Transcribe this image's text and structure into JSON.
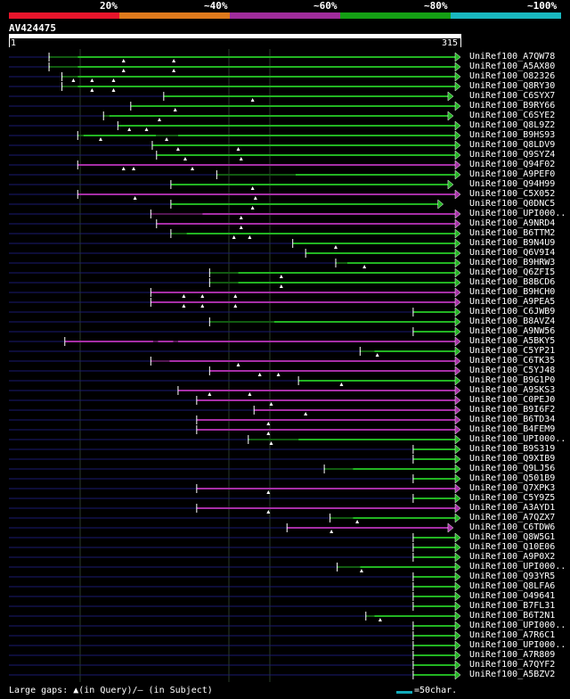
{
  "legend": {
    "labels": [
      "20%",
      "~40%",
      "~60%",
      "~80%",
      "~100%"
    ],
    "colors": [
      "#e8152b",
      "#e07a1c",
      "#a02c9c",
      "#14a014",
      "#19b8c0"
    ]
  },
  "query": {
    "id": "AV424475",
    "start_label": "1",
    "end_label": "315",
    "length": 315
  },
  "hits": [
    {
      "label": "UniRef100_A7QW78",
      "color": "green",
      "q_start": 28,
      "q_end": 315,
      "gaps": [
        [
          28,
          48
        ]
      ],
      "tri": [
        80,
        115
      ],
      "arrow": true
    },
    {
      "label": "UniRef100_A5AX80",
      "color": "green",
      "q_start": 28,
      "q_end": 315,
      "gaps": [
        [
          28,
          48
        ]
      ],
      "tri": [
        80,
        115
      ],
      "arrow": true
    },
    {
      "label": "UniRef100_O82326",
      "color": "green",
      "q_start": 37,
      "q_end": 315,
      "gaps": [
        [
          37,
          48
        ]
      ],
      "tri": [
        45,
        58,
        73
      ],
      "arrow": true
    },
    {
      "label": "UniRef100_Q8RY30",
      "color": "green",
      "q_start": 37,
      "q_end": 315,
      "gaps": [
        [
          37,
          48
        ]
      ],
      "tri": [
        58,
        73
      ],
      "arrow": true
    },
    {
      "label": "UniRef100_C6SYX7",
      "color": "green",
      "q_start": 108,
      "q_end": 310,
      "gaps": [],
      "tri": [
        170
      ],
      "arrow": true
    },
    {
      "label": "UniRef100_B9RY66",
      "color": "green",
      "q_start": 85,
      "q_end": 315,
      "gaps": [],
      "tri": [
        116
      ],
      "arrow": true
    },
    {
      "label": "UniRef100_C6SYE2",
      "color": "green",
      "q_start": 66,
      "q_end": 310,
      "gaps": [
        [
          66,
          70
        ]
      ],
      "tri": [
        105
      ],
      "arrow": true
    },
    {
      "label": "UniRef100_Q8L9Z2",
      "color": "green",
      "q_start": 76,
      "q_end": 315,
      "gaps": [],
      "tri": [
        84,
        96
      ],
      "arrow": true
    },
    {
      "label": "UniRef100_B9HS93",
      "color": "green",
      "q_start": 48,
      "q_end": 315,
      "gaps": [
        [
          48,
          52
        ],
        [
          102,
          118
        ]
      ],
      "tri": [
        64,
        110
      ],
      "arrow": true
    },
    {
      "label": "UniRef100_Q8LDV9",
      "color": "green",
      "q_start": 100,
      "q_end": 315,
      "gaps": [],
      "tri": [
        118,
        160
      ],
      "arrow": true
    },
    {
      "label": "UniRef100_Q9SYZ4",
      "color": "green",
      "q_start": 103,
      "q_end": 315,
      "gaps": [],
      "tri": [
        123,
        162
      ],
      "arrow": true
    },
    {
      "label": "UniRef100_Q94F02",
      "color": "purple",
      "q_start": 48,
      "q_end": 315,
      "gaps": [],
      "tri": [
        80,
        87,
        128
      ],
      "arrow": true
    },
    {
      "label": "UniRef100_A9PEF0",
      "color": "green",
      "q_start": 145,
      "q_end": 315,
      "gaps": [
        [
          145,
          200
        ]
      ],
      "tri": [],
      "arrow": true
    },
    {
      "label": "UniRef100_Q94H99",
      "color": "green",
      "q_start": 113,
      "q_end": 310,
      "gaps": [],
      "tri": [
        170
      ],
      "arrow": true
    },
    {
      "label": "UniRef100_C5X052",
      "color": "purple",
      "q_start": 48,
      "q_end": 315,
      "gaps": [],
      "tri": [
        88,
        172
      ],
      "arrow": true
    },
    {
      "label": "UniRef100_Q0DNC5",
      "color": "green",
      "q_start": 113,
      "q_end": 303,
      "gaps": [],
      "tri": [
        170
      ],
      "arrow": true
    },
    {
      "label": "UniRef100_UPI000..",
      "color": "purple",
      "q_start": 99,
      "q_end": 315,
      "gaps": [
        [
          99,
          135
        ]
      ],
      "tri": [
        162
      ],
      "arrow": true
    },
    {
      "label": "UniRef100_A9NRD4",
      "color": "purple",
      "q_start": 103,
      "q_end": 315,
      "gaps": [],
      "tri": [
        162
      ],
      "arrow": true
    },
    {
      "label": "UniRef100_B6TTM2",
      "color": "green",
      "q_start": 113,
      "q_end": 315,
      "gaps": [
        [
          113,
          124
        ]
      ],
      "tri": [
        157,
        168
      ],
      "arrow": true
    },
    {
      "label": "UniRef100_B9N4U9",
      "color": "green",
      "q_start": 198,
      "q_end": 315,
      "gaps": [],
      "tri": [
        228
      ],
      "arrow": true
    },
    {
      "label": "UniRef100_Q6V9I4",
      "color": "green",
      "q_start": 207,
      "q_end": 315,
      "gaps": [],
      "tri": [],
      "arrow": true
    },
    {
      "label": "UniRef100_B9HRW3",
      "color": "green",
      "q_start": 228,
      "q_end": 315,
      "gaps": [
        [
          228,
          236
        ]
      ],
      "tri": [
        248
      ],
      "arrow": true
    },
    {
      "label": "UniRef100_Q6ZFI5",
      "color": "green",
      "q_start": 140,
      "q_end": 315,
      "gaps": [
        [
          140,
          160
        ]
      ],
      "tri": [
        190
      ],
      "arrow": true
    },
    {
      "label": "UniRef100_B8BCD6",
      "color": "green",
      "q_start": 140,
      "q_end": 315,
      "gaps": [
        [
          140,
          160
        ]
      ],
      "tri": [
        190
      ],
      "arrow": true
    },
    {
      "label": "UniRef100_B9HCH0",
      "color": "purple",
      "q_start": 99,
      "q_end": 315,
      "gaps": [],
      "tri": [
        122,
        135,
        158
      ],
      "arrow": true
    },
    {
      "label": "UniRef100_A9PEA5",
      "color": "purple",
      "q_start": 99,
      "q_end": 315,
      "gaps": [],
      "tri": [
        122,
        135,
        158
      ],
      "arrow": true
    },
    {
      "label": "UniRef100_C6JWB9",
      "color": "green",
      "q_start": 282,
      "q_end": 315,
      "gaps": [],
      "tri": [],
      "arrow": true
    },
    {
      "label": "UniRef100_B8AVZ4",
      "color": "green",
      "q_start": 140,
      "q_end": 315,
      "gaps": [
        [
          140,
          185
        ]
      ],
      "tri": [],
      "arrow": true
    },
    {
      "label": "UniRef100_A9NW56",
      "color": "green",
      "q_start": 282,
      "q_end": 315,
      "gaps": [],
      "tri": [],
      "arrow": true
    },
    {
      "label": "UniRef100_A5BKY5",
      "color": "purple",
      "q_start": 39,
      "q_end": 315,
      "gaps": [
        [
          100,
          104
        ],
        [
          114,
          118
        ]
      ],
      "tri": [],
      "arrow": true
    },
    {
      "label": "UniRef100_C5YP21",
      "color": "green",
      "q_start": 245,
      "q_end": 315,
      "gaps": [
        [
          245,
          255
        ]
      ],
      "tri": [
        257
      ],
      "arrow": true
    },
    {
      "label": "UniRef100_C6TK35",
      "color": "purple",
      "q_start": 99,
      "q_end": 315,
      "gaps": [
        [
          99,
          112
        ]
      ],
      "tri": [
        160
      ],
      "arrow": true
    },
    {
      "label": "UniRef100_C5YJ48",
      "color": "purple",
      "q_start": 140,
      "q_end": 315,
      "gaps": [],
      "tri": [
        175,
        188
      ],
      "arrow": true
    },
    {
      "label": "UniRef100_B9G1P0",
      "color": "green",
      "q_start": 202,
      "q_end": 315,
      "gaps": [],
      "tri": [
        232
      ],
      "arrow": true
    },
    {
      "label": "UniRef100_A9SKS3",
      "color": "purple",
      "q_start": 118,
      "q_end": 315,
      "gaps": [],
      "tri": [
        140,
        168
      ],
      "arrow": true
    },
    {
      "label": "UniRef100_C0PEJ0",
      "color": "purple",
      "q_start": 131,
      "q_end": 315,
      "gaps": [],
      "tri": [
        183
      ],
      "arrow": true
    },
    {
      "label": "UniRef100_B9I6F2",
      "color": "purple",
      "q_start": 171,
      "q_end": 315,
      "gaps": [],
      "tri": [
        207
      ],
      "arrow": true
    },
    {
      "label": "UniRef100_B6TD34",
      "color": "purple",
      "q_start": 131,
      "q_end": 315,
      "gaps": [],
      "tri": [
        181
      ],
      "arrow": true
    },
    {
      "label": "UniRef100_B4FEM9",
      "color": "purple",
      "q_start": 131,
      "q_end": 315,
      "gaps": [],
      "tri": [
        181
      ],
      "arrow": true
    },
    {
      "label": "UniRef100_UPI000..",
      "color": "green",
      "q_start": 167,
      "q_end": 315,
      "gaps": [
        [
          167,
          202
        ]
      ],
      "tri": [
        183
      ],
      "arrow": true
    },
    {
      "label": "UniRef100_B9S319",
      "color": "green",
      "q_start": 282,
      "q_end": 315,
      "gaps": [],
      "tri": [],
      "arrow": true
    },
    {
      "label": "UniRef100_Q9XIB9",
      "color": "green",
      "q_start": 282,
      "q_end": 315,
      "gaps": [],
      "tri": [],
      "arrow": true
    },
    {
      "label": "UniRef100_Q9LJ56",
      "color": "green",
      "q_start": 220,
      "q_end": 315,
      "gaps": [
        [
          220,
          240
        ]
      ],
      "tri": [],
      "arrow": true
    },
    {
      "label": "UniRef100_Q501B9",
      "color": "green",
      "q_start": 282,
      "q_end": 315,
      "gaps": [],
      "tri": [],
      "arrow": true
    },
    {
      "label": "UniRef100_Q7XPK3",
      "color": "purple",
      "q_start": 131,
      "q_end": 315,
      "gaps": [],
      "tri": [
        181
      ],
      "arrow": true
    },
    {
      "label": "UniRef100_C5Y9Z5",
      "color": "green",
      "q_start": 282,
      "q_end": 315,
      "gaps": [],
      "tri": [],
      "arrow": true
    },
    {
      "label": "UniRef100_A3AYD1",
      "color": "purple",
      "q_start": 131,
      "q_end": 315,
      "gaps": [],
      "tri": [
        181
      ],
      "arrow": true
    },
    {
      "label": "UniRef100_A7QZX7",
      "color": "green",
      "q_start": 224,
      "q_end": 315,
      "gaps": [
        [
          224,
          240
        ]
      ],
      "tri": [
        243
      ],
      "arrow": true
    },
    {
      "label": "UniRef100_C6TDW6",
      "color": "purple",
      "q_start": 194,
      "q_end": 310,
      "gaps": [],
      "tri": [
        225
      ],
      "arrow": true
    },
    {
      "label": "UniRef100_Q8W5G1",
      "color": "green",
      "q_start": 282,
      "q_end": 315,
      "gaps": [],
      "tri": [],
      "arrow": true
    },
    {
      "label": "UniRef100_Q10E06",
      "color": "green",
      "q_start": 282,
      "q_end": 315,
      "gaps": [],
      "tri": [],
      "arrow": true
    },
    {
      "label": "UniRef100_A9P0X2",
      "color": "green",
      "q_start": 282,
      "q_end": 315,
      "gaps": [],
      "tri": [],
      "arrow": true
    },
    {
      "label": "UniRef100_UPI000..",
      "color": "green",
      "q_start": 229,
      "q_end": 315,
      "gaps": [
        [
          229,
          245
        ]
      ],
      "tri": [
        246
      ],
      "arrow": true
    },
    {
      "label": "UniRef100_Q93YR5",
      "color": "green",
      "q_start": 282,
      "q_end": 315,
      "gaps": [],
      "tri": [],
      "arrow": true
    },
    {
      "label": "UniRef100_Q8LFA6",
      "color": "green",
      "q_start": 282,
      "q_end": 315,
      "gaps": [],
      "tri": [],
      "arrow": true
    },
    {
      "label": "UniRef100_O49641",
      "color": "green",
      "q_start": 282,
      "q_end": 315,
      "gaps": [],
      "tri": [],
      "arrow": true
    },
    {
      "label": "UniRef100_B7FL31",
      "color": "green",
      "q_start": 282,
      "q_end": 315,
      "gaps": [],
      "tri": [],
      "arrow": true
    },
    {
      "label": "UniRef100_B6T2N1",
      "color": "green",
      "q_start": 249,
      "q_end": 315,
      "gaps": [
        [
          249,
          255
        ]
      ],
      "tri": [
        259
      ],
      "arrow": true
    },
    {
      "label": "UniRef100_UPI000..",
      "color": "green",
      "q_start": 282,
      "q_end": 315,
      "gaps": [],
      "tri": [],
      "arrow": true
    },
    {
      "label": "UniRef100_A7R6C1",
      "color": "green",
      "q_start": 282,
      "q_end": 315,
      "gaps": [],
      "tri": [],
      "arrow": true
    },
    {
      "label": "UniRef100_UPI000..",
      "color": "green",
      "q_start": 282,
      "q_end": 315,
      "gaps": [],
      "tri": [],
      "arrow": true
    },
    {
      "label": "UniRef100_A7R809",
      "color": "green",
      "q_start": 282,
      "q_end": 315,
      "gaps": [],
      "tri": [],
      "arrow": true
    },
    {
      "label": "UniRef100_A7QYF2",
      "color": "green",
      "q_start": 282,
      "q_end": 315,
      "gaps": [],
      "tri": [],
      "arrow": true
    },
    {
      "label": "UniRef100_A5BZV2",
      "color": "green",
      "q_start": 282,
      "q_end": 315,
      "gaps": [],
      "tri": [],
      "arrow": true
    }
  ],
  "footer": {
    "gaps_text": "Large gaps: ▲(in Query)/– (in Subject)",
    "scale_text": "=50char."
  },
  "colors": {
    "green": "#22b422",
    "purple": "#a62ea6",
    "navy": "#1a1a70",
    "grid": "#2a3a2a"
  }
}
